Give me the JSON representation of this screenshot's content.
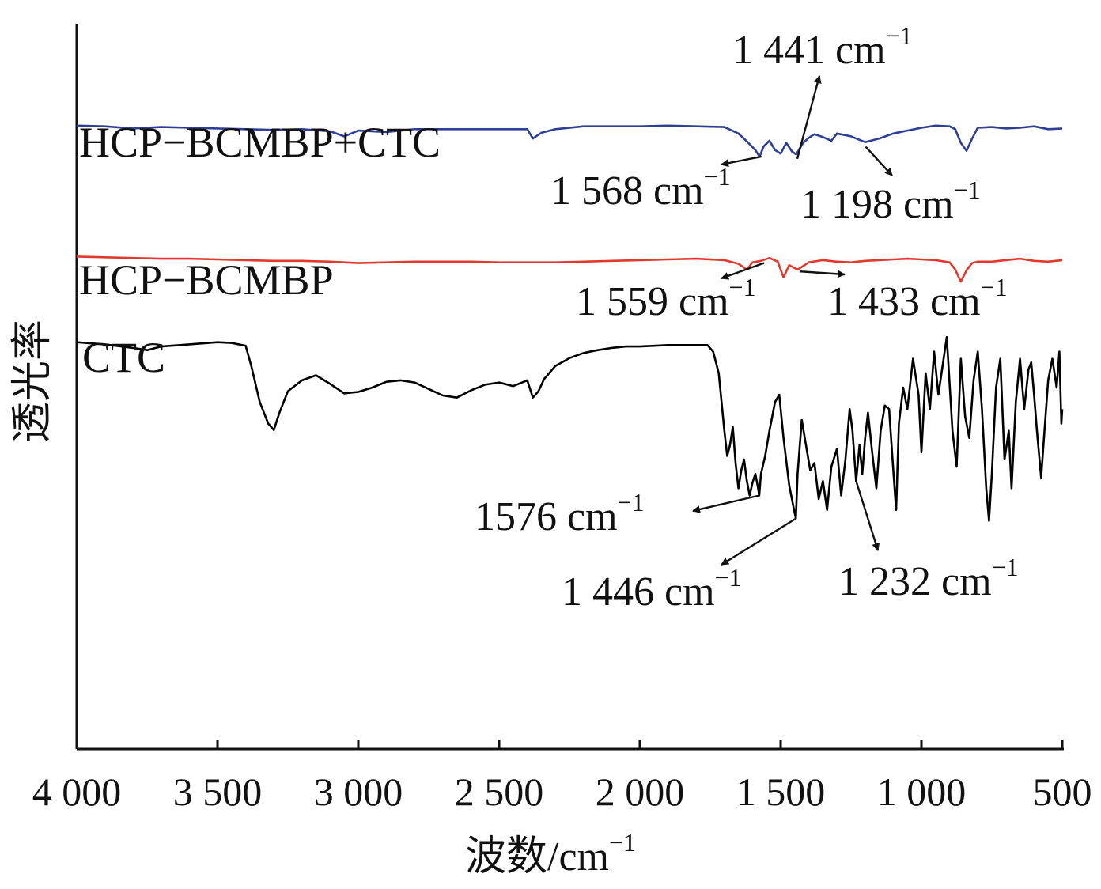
{
  "chart_data": {
    "type": "line",
    "title": "",
    "xlabel": "波数/cm",
    "xlabel_sup": "−1",
    "ylabel": "透光率",
    "xlim": [
      4000,
      500
    ],
    "x_reversed": true,
    "ylim": [
      0,
      100
    ],
    "y_ticks_shown": false,
    "grid": false,
    "x_ticks": [
      4000,
      3500,
      3000,
      2500,
      2000,
      1500,
      1000,
      500
    ],
    "x_tick_labels": [
      "4 000",
      "3 500",
      "3 000",
      "2 500",
      "2 000",
      "1 500",
      "1 000",
      "500"
    ],
    "series": [
      {
        "name": "HCP−BCMBP+CTC",
        "color": "#2f3f94",
        "points": [
          [
            4000,
            86.4
          ],
          [
            3900,
            86.3
          ],
          [
            3800,
            86.0
          ],
          [
            3700,
            86.2
          ],
          [
            3600,
            86.1
          ],
          [
            3500,
            86.0
          ],
          [
            3400,
            85.9
          ],
          [
            3300,
            85.8
          ],
          [
            3200,
            85.9
          ],
          [
            3100,
            85.6
          ],
          [
            3050,
            84.9
          ],
          [
            3000,
            85.7
          ],
          [
            2900,
            85.5
          ],
          [
            2800,
            85.9
          ],
          [
            2700,
            85.9
          ],
          [
            2600,
            85.9
          ],
          [
            2500,
            85.9
          ],
          [
            2400,
            85.9
          ],
          [
            2380,
            84.6
          ],
          [
            2350,
            85.4
          ],
          [
            2300,
            85.9
          ],
          [
            2200,
            86.3
          ],
          [
            2100,
            86.3
          ],
          [
            2000,
            86.3
          ],
          [
            1900,
            86.4
          ],
          [
            1800,
            86.3
          ],
          [
            1700,
            86.2
          ],
          [
            1650,
            85.3
          ],
          [
            1620,
            84.2
          ],
          [
            1590,
            83.0
          ],
          [
            1575,
            82.1
          ],
          [
            1560,
            83.5
          ],
          [
            1540,
            84.3
          ],
          [
            1520,
            83.0
          ],
          [
            1500,
            82.5
          ],
          [
            1480,
            84.0
          ],
          [
            1460,
            82.8
          ],
          [
            1445,
            82.4
          ],
          [
            1420,
            84.0
          ],
          [
            1400,
            84.7
          ],
          [
            1380,
            85.2
          ],
          [
            1350,
            84.8
          ],
          [
            1320,
            84.3
          ],
          [
            1300,
            85.3
          ],
          [
            1250,
            84.9
          ],
          [
            1200,
            84.1
          ],
          [
            1150,
            84.6
          ],
          [
            1100,
            85.3
          ],
          [
            1050,
            85.7
          ],
          [
            1000,
            86.1
          ],
          [
            950,
            86.4
          ],
          [
            900,
            86.3
          ],
          [
            880,
            85.9
          ],
          [
            860,
            84.0
          ],
          [
            840,
            82.9
          ],
          [
            820,
            84.6
          ],
          [
            800,
            86.1
          ],
          [
            750,
            86.2
          ],
          [
            700,
            86.0
          ],
          [
            650,
            86.1
          ],
          [
            600,
            86.3
          ],
          [
            550,
            85.9
          ],
          [
            500,
            86.0
          ]
        ]
      },
      {
        "name": "HCP−BCMBP",
        "color": "#e03a2e",
        "points": [
          [
            4000,
            68.2
          ],
          [
            3900,
            68.1
          ],
          [
            3800,
            68.0
          ],
          [
            3700,
            67.9
          ],
          [
            3600,
            67.9
          ],
          [
            3500,
            67.8
          ],
          [
            3400,
            67.7
          ],
          [
            3300,
            67.6
          ],
          [
            3200,
            67.6
          ],
          [
            3100,
            67.5
          ],
          [
            3000,
            67.3
          ],
          [
            2900,
            67.4
          ],
          [
            2800,
            67.5
          ],
          [
            2700,
            67.5
          ],
          [
            2600,
            67.5
          ],
          [
            2500,
            67.4
          ],
          [
            2400,
            67.4
          ],
          [
            2300,
            67.4
          ],
          [
            2200,
            67.5
          ],
          [
            2100,
            67.6
          ],
          [
            2000,
            67.7
          ],
          [
            1900,
            67.8
          ],
          [
            1800,
            67.9
          ],
          [
            1700,
            67.7
          ],
          [
            1650,
            67.2
          ],
          [
            1620,
            66.4
          ],
          [
            1600,
            67.4
          ],
          [
            1570,
            67.6
          ],
          [
            1540,
            68.0
          ],
          [
            1510,
            67.5
          ],
          [
            1490,
            65.3
          ],
          [
            1470,
            67.0
          ],
          [
            1440,
            66.4
          ],
          [
            1400,
            67.4
          ],
          [
            1350,
            67.7
          ],
          [
            1300,
            67.5
          ],
          [
            1250,
            67.4
          ],
          [
            1200,
            67.6
          ],
          [
            1150,
            67.7
          ],
          [
            1100,
            67.8
          ],
          [
            1050,
            67.9
          ],
          [
            1000,
            67.8
          ],
          [
            950,
            67.7
          ],
          [
            900,
            67.4
          ],
          [
            880,
            66.4
          ],
          [
            860,
            64.7
          ],
          [
            840,
            66.3
          ],
          [
            820,
            67.3
          ],
          [
            800,
            67.5
          ],
          [
            750,
            67.5
          ],
          [
            700,
            67.7
          ],
          [
            650,
            67.9
          ],
          [
            600,
            67.6
          ],
          [
            550,
            67.5
          ],
          [
            500,
            67.7
          ]
        ]
      },
      {
        "name": "CTC",
        "color": "#000000",
        "points": [
          [
            4000,
            56.3
          ],
          [
            3900,
            56.0
          ],
          [
            3800,
            55.5
          ],
          [
            3750,
            55.2
          ],
          [
            3700,
            55.7
          ],
          [
            3600,
            56.0
          ],
          [
            3500,
            56.3
          ],
          [
            3450,
            56.2
          ],
          [
            3400,
            55.8
          ],
          [
            3380,
            53.0
          ],
          [
            3350,
            48.0
          ],
          [
            3320,
            45.0
          ],
          [
            3300,
            44.1
          ],
          [
            3280,
            46.5
          ],
          [
            3250,
            49.5
          ],
          [
            3200,
            51.0
          ],
          [
            3150,
            51.7
          ],
          [
            3100,
            50.5
          ],
          [
            3050,
            49.2
          ],
          [
            3000,
            49.4
          ],
          [
            2950,
            50.0
          ],
          [
            2900,
            50.8
          ],
          [
            2850,
            51.0
          ],
          [
            2800,
            50.7
          ],
          [
            2750,
            49.8
          ],
          [
            2700,
            48.9
          ],
          [
            2650,
            48.6
          ],
          [
            2600,
            49.6
          ],
          [
            2550,
            50.4
          ],
          [
            2500,
            50.7
          ],
          [
            2450,
            50.2
          ],
          [
            2400,
            51.0
          ],
          [
            2380,
            48.6
          ],
          [
            2360,
            49.5
          ],
          [
            2340,
            51.2
          ],
          [
            2300,
            53.0
          ],
          [
            2250,
            54.1
          ],
          [
            2200,
            54.8
          ],
          [
            2150,
            55.2
          ],
          [
            2100,
            55.5
          ],
          [
            2050,
            55.7
          ],
          [
            2000,
            55.7
          ],
          [
            1950,
            55.8
          ],
          [
            1900,
            55.9
          ],
          [
            1850,
            55.9
          ],
          [
            1800,
            55.9
          ],
          [
            1760,
            55.9
          ],
          [
            1740,
            55.0
          ],
          [
            1720,
            52.0
          ],
          [
            1700,
            44.0
          ],
          [
            1690,
            40.5
          ],
          [
            1680,
            42.0
          ],
          [
            1670,
            44.5
          ],
          [
            1660,
            39.5
          ],
          [
            1650,
            36.0
          ],
          [
            1640,
            38.5
          ],
          [
            1630,
            40.0
          ],
          [
            1620,
            37.0
          ],
          [
            1610,
            35.0
          ],
          [
            1600,
            36.8
          ],
          [
            1590,
            38.0
          ],
          [
            1580,
            36.0
          ],
          [
            1576,
            35.0
          ],
          [
            1570,
            38.0
          ],
          [
            1555,
            40.5
          ],
          [
            1540,
            44.0
          ],
          [
            1520,
            48.0
          ],
          [
            1505,
            49.0
          ],
          [
            1490,
            43.0
          ],
          [
            1470,
            36.5
          ],
          [
            1455,
            33.5
          ],
          [
            1446,
            31.8
          ],
          [
            1440,
            38.0
          ],
          [
            1425,
            45.5
          ],
          [
            1410,
            42.0
          ],
          [
            1395,
            38.5
          ],
          [
            1380,
            39.5
          ],
          [
            1365,
            34.5
          ],
          [
            1350,
            37.0
          ],
          [
            1335,
            33.0
          ],
          [
            1320,
            39.0
          ],
          [
            1300,
            41.5
          ],
          [
            1285,
            35.0
          ],
          [
            1270,
            40.0
          ],
          [
            1255,
            47.0
          ],
          [
            1245,
            44.0
          ],
          [
            1232,
            37.0
          ],
          [
            1220,
            42.0
          ],
          [
            1210,
            38.0
          ],
          [
            1200,
            43.0
          ],
          [
            1190,
            46.5
          ],
          [
            1175,
            41.0
          ],
          [
            1160,
            36.0
          ],
          [
            1145,
            44.0
          ],
          [
            1130,
            47.5
          ],
          [
            1115,
            47.0
          ],
          [
            1100,
            38.5
          ],
          [
            1090,
            33.0
          ],
          [
            1080,
            45.0
          ],
          [
            1065,
            50.0
          ],
          [
            1050,
            47.0
          ],
          [
            1030,
            54.0
          ],
          [
            1010,
            49.0
          ],
          [
            1000,
            41.0
          ],
          [
            985,
            52.0
          ],
          [
            970,
            47.0
          ],
          [
            955,
            55.0
          ],
          [
            940,
            49.0
          ],
          [
            925,
            53.0
          ],
          [
            910,
            57.0
          ],
          [
            890,
            44.0
          ],
          [
            875,
            39.0
          ],
          [
            860,
            54.0
          ],
          [
            845,
            46.0
          ],
          [
            830,
            43.0
          ],
          [
            815,
            51.0
          ],
          [
            800,
            55.0
          ],
          [
            785,
            47.0
          ],
          [
            770,
            36.0
          ],
          [
            760,
            31.5
          ],
          [
            750,
            38.0
          ],
          [
            735,
            50.0
          ],
          [
            720,
            54.0
          ],
          [
            705,
            40.0
          ],
          [
            690,
            44.0
          ],
          [
            680,
            36.0
          ],
          [
            665,
            48.0
          ],
          [
            650,
            54.0
          ],
          [
            635,
            47.0
          ],
          [
            620,
            52.5
          ],
          [
            610,
            53.5
          ],
          [
            600,
            49.0
          ],
          [
            590,
            44.0
          ],
          [
            575,
            37.5
          ],
          [
            565,
            43.0
          ],
          [
            550,
            51.0
          ],
          [
            535,
            54.0
          ],
          [
            520,
            50.0
          ],
          [
            510,
            55.0
          ],
          [
            503,
            45.0
          ],
          [
            500,
            47.0
          ]
        ]
      }
    ],
    "annotations": [
      {
        "text": "1 441 cm",
        "sup": "−1",
        "target_x": 1441,
        "target_series": "HCP−BCMBP+CTC"
      },
      {
        "text": "1 568 cm",
        "sup": "−1",
        "target_x": 1568,
        "target_series": "HCP−BCMBP+CTC"
      },
      {
        "text": "1 198 cm",
        "sup": "−1",
        "target_x": 1198,
        "target_series": "HCP−BCMBP+CTC"
      },
      {
        "text": "1 559 cm",
        "sup": "−1",
        "target_x": 1559,
        "target_series": "HCP−BCMBP"
      },
      {
        "text": "1 433 cm",
        "sup": "−1",
        "target_x": 1433,
        "target_series": "HCP−BCMBP"
      },
      {
        "text": "1576 cm",
        "sup": "−1",
        "target_x": 1576,
        "target_series": "CTC"
      },
      {
        "text": "1 446 cm",
        "sup": "−1",
        "target_x": 1446,
        "target_series": "CTC"
      },
      {
        "text": "1 232 cm",
        "sup": "−1",
        "target_x": 1232,
        "target_series": "CTC"
      }
    ]
  }
}
